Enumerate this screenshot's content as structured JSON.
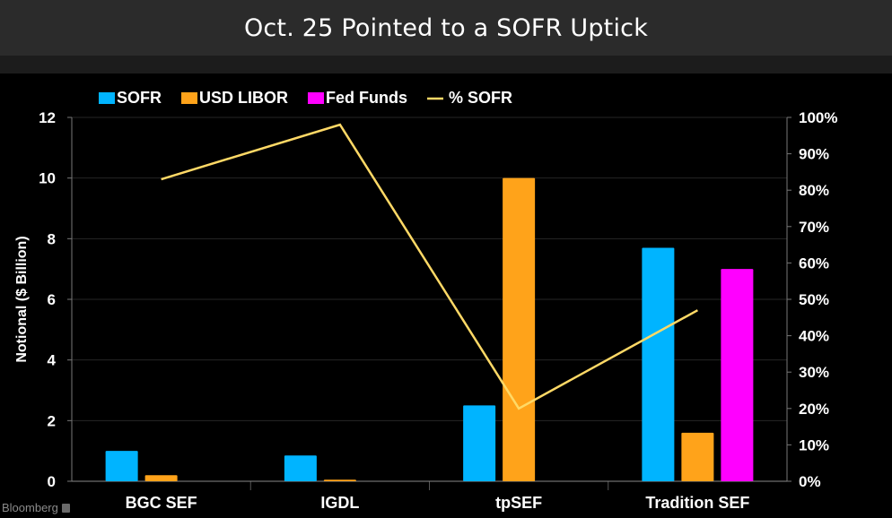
{
  "header": {
    "title": "Oct. 25 Pointed to a SOFR Uptick"
  },
  "branding": {
    "source": "Bloomberg"
  },
  "chart_data": {
    "type": "bar",
    "categories": [
      "BGC SEF",
      "IGDL",
      "tpSEF",
      "Tradition SEF"
    ],
    "series": [
      {
        "name": "SOFR",
        "color": "#00b4ff",
        "values": [
          1.0,
          0.85,
          2.5,
          7.7
        ],
        "axis": "left"
      },
      {
        "name": "USD LIBOR",
        "color": "#ffa31a",
        "values": [
          0.2,
          0.05,
          10.0,
          1.6
        ],
        "axis": "left"
      },
      {
        "name": "Fed Funds",
        "color": "#ff00ff",
        "values": [
          0,
          0,
          0,
          7.0
        ],
        "axis": "left"
      },
      {
        "name": "% SOFR",
        "color": "#ffd966",
        "type": "line",
        "values": [
          83,
          98,
          20,
          47
        ],
        "axis": "right"
      }
    ],
    "ylabel": "Notional ($ Billion)",
    "ylim": [
      0,
      12
    ],
    "yticks": [
      "0",
      "2",
      "4",
      "6",
      "8",
      "10",
      "12"
    ],
    "y2lim": [
      0,
      100
    ],
    "y2ticks": [
      "0%",
      "10%",
      "20%",
      "30%",
      "40%",
      "50%",
      "60%",
      "70%",
      "80%",
      "90%",
      "100%"
    ],
    "legend": [
      "SOFR",
      "USD LIBOR",
      "Fed Funds",
      "% SOFR"
    ]
  }
}
